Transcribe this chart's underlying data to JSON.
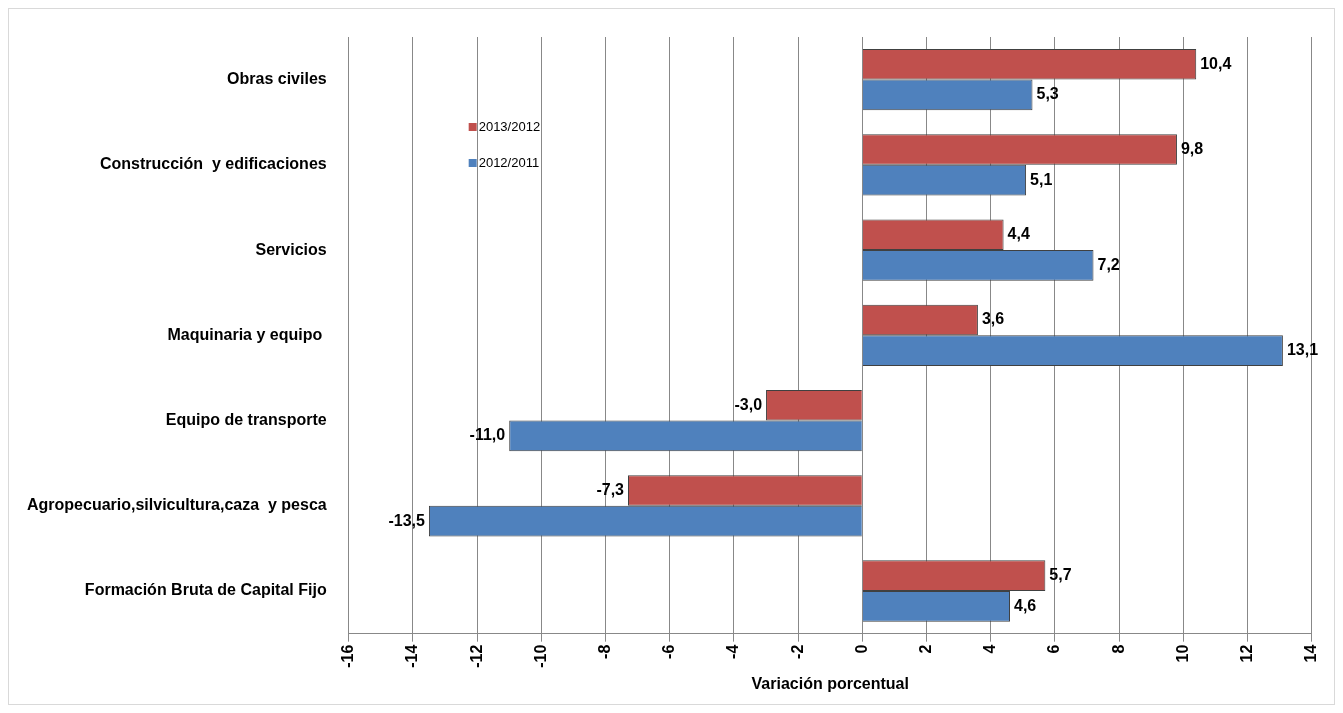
{
  "chart_data": {
    "type": "bar",
    "orientation": "horizontal",
    "xlabel": "Variación porcentual",
    "categories": [
      "Obras civiles",
      "Construcción  y edificaciones",
      "Servicios",
      "Maquinaria y equipo ",
      "Equipo de transporte",
      "Agropecuario,silvicultura,caza  y pesca",
      "Formación Bruta de Capital Fijo"
    ],
    "series": [
      {
        "name": "2013/2012",
        "color": "#c0504d",
        "values": [
          10.4,
          9.8,
          4.4,
          3.6,
          -3.0,
          -7.3,
          5.7
        ],
        "value_labels": [
          "10,4",
          "9,8",
          "4,4",
          "3,6",
          "-3,0",
          "-7,3",
          "5,7"
        ]
      },
      {
        "name": "2012/2011",
        "color": "#4f81bd",
        "values": [
          5.3,
          5.1,
          7.2,
          13.1,
          -11.0,
          -13.5,
          4.6
        ],
        "value_labels": [
          "5,3",
          "5,1",
          "7,2",
          "13,1",
          "-11,0",
          "-13,5",
          "4,6"
        ]
      }
    ],
    "xlim": [
      -16,
      14
    ],
    "xticks": [
      -16,
      -14,
      -12,
      -10,
      -8,
      -6,
      -4,
      -2,
      0,
      2,
      4,
      6,
      8,
      10,
      12,
      14
    ],
    "grid": "x",
    "legend": "top left"
  }
}
